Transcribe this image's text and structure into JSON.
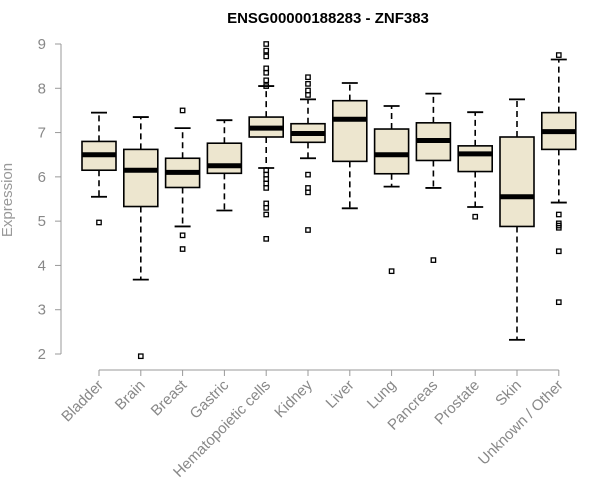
{
  "chart_data": {
    "type": "boxplot",
    "title": "ENSG00000188283 - ZNF383",
    "xlabel": "",
    "ylabel": "Expression",
    "ylim": [
      2,
      9
    ],
    "yticks": [
      2,
      3,
      4,
      5,
      6,
      7,
      8,
      9
    ],
    "box_color": "#ede6cf",
    "categories": [
      "Bladder",
      "Brain",
      "Breast",
      "Gastric",
      "Hematopoietic cells",
      "Kidney",
      "Liver",
      "Lung",
      "Pancreas",
      "Prostate",
      "Skin",
      "Unknown / Other"
    ],
    "series": [
      {
        "min": 5.55,
        "q1": 6.15,
        "median": 6.5,
        "q3": 6.8,
        "max": 7.45,
        "outliers": [
          4.97
        ]
      },
      {
        "min": 3.68,
        "q1": 5.33,
        "median": 6.15,
        "q3": 6.62,
        "max": 7.35,
        "outliers": [
          1.95
        ]
      },
      {
        "min": 4.88,
        "q1": 5.76,
        "median": 6.1,
        "q3": 6.42,
        "max": 7.1,
        "outliers": [
          7.5,
          4.68,
          4.37
        ]
      },
      {
        "min": 5.24,
        "q1": 6.08,
        "median": 6.25,
        "q3": 6.76,
        "max": 7.28,
        "outliers": []
      },
      {
        "min": 6.2,
        "q1": 6.9,
        "median": 7.1,
        "q3": 7.35,
        "max": 8.05,
        "outliers": [
          9.0,
          8.85,
          8.72,
          8.45,
          8.35,
          8.18,
          8.05,
          6.15,
          6.05,
          5.95,
          5.85,
          5.75,
          5.4,
          5.3,
          5.15,
          4.6
        ]
      },
      {
        "min": 6.42,
        "q1": 6.78,
        "median": 6.98,
        "q3": 7.2,
        "max": 7.75,
        "outliers": [
          8.25,
          8.1,
          7.95,
          7.85,
          6.05,
          5.75,
          5.65,
          4.8
        ]
      },
      {
        "min": 5.29,
        "q1": 6.35,
        "median": 7.3,
        "q3": 7.72,
        "max": 8.12,
        "outliers": []
      },
      {
        "min": 5.78,
        "q1": 6.07,
        "median": 6.5,
        "q3": 7.08,
        "max": 7.6,
        "outliers": [
          3.87
        ]
      },
      {
        "min": 5.75,
        "q1": 6.37,
        "median": 6.82,
        "q3": 7.22,
        "max": 7.88,
        "outliers": [
          4.12
        ]
      },
      {
        "min": 5.32,
        "q1": 6.12,
        "median": 6.52,
        "q3": 6.7,
        "max": 7.46,
        "outliers": [
          5.1
        ]
      },
      {
        "min": 2.32,
        "q1": 4.88,
        "median": 5.55,
        "q3": 6.9,
        "max": 7.75,
        "outliers": []
      },
      {
        "min": 5.42,
        "q1": 6.62,
        "median": 7.02,
        "q3": 7.45,
        "max": 8.65,
        "outliers": [
          8.75,
          5.15,
          4.95,
          4.9,
          4.85,
          4.32,
          3.17
        ]
      }
    ]
  }
}
